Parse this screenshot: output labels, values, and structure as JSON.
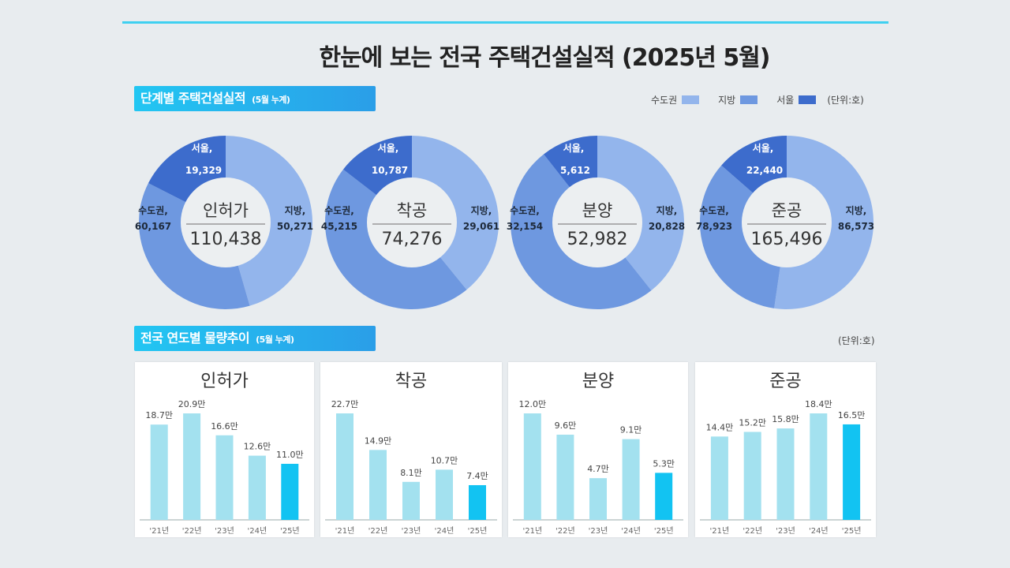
{
  "title": "한눈에 보는 전국 주택건설실적  (2025년 5월)",
  "section1": {
    "label": "단계별 주택건설실적",
    "sub": "(5월 누계)"
  },
  "section2": {
    "label": "전국 연도별 물량추이",
    "sub": "(5월 누계)"
  },
  "legend": {
    "items": [
      {
        "label": "수도권",
        "color": "#93b5ec"
      },
      {
        "label": "지방",
        "color": "#6e98e0"
      },
      {
        "label": "서울",
        "color": "#3d6ccc"
      }
    ],
    "unit": "(단위:호)"
  },
  "unit2": "(단위:호)",
  "chart_data": [
    {
      "type": "pie",
      "name": "인허가",
      "total": 110438,
      "total_label": "110,438",
      "slices": [
        {
          "label": "지방,",
          "value": 50271,
          "value_label": "50,271"
        },
        {
          "label": "수도권,",
          "value": 60167,
          "value_label": "60,167"
        },
        {
          "label": "서울,",
          "value": 19329,
          "value_label": "19,329"
        }
      ]
    },
    {
      "type": "pie",
      "name": "착공",
      "total": 74276,
      "total_label": "74,276",
      "slices": [
        {
          "label": "지방,",
          "value": 29061,
          "value_label": "29,061"
        },
        {
          "label": "수도권,",
          "value": 45215,
          "value_label": "45,215"
        },
        {
          "label": "서울,",
          "value": 10787,
          "value_label": "10,787"
        }
      ]
    },
    {
      "type": "pie",
      "name": "분양",
      "total": 52982,
      "total_label": "52,982",
      "slices": [
        {
          "label": "지방,",
          "value": 20828,
          "value_label": "20,828"
        },
        {
          "label": "수도권,",
          "value": 32154,
          "value_label": "32,154"
        },
        {
          "label": "서울,",
          "value": 5612,
          "value_label": "5,612"
        }
      ]
    },
    {
      "type": "pie",
      "name": "준공",
      "total": 165496,
      "total_label": "165,496",
      "slices": [
        {
          "label": "지방,",
          "value": 86573,
          "value_label": "86,573"
        },
        {
          "label": "수도권,",
          "value": 78923,
          "value_label": "78,923"
        },
        {
          "label": "서울,",
          "value": 22440,
          "value_label": "22,440"
        }
      ]
    },
    {
      "type": "bar",
      "title": "인허가",
      "categories": [
        "'21년",
        "'22년",
        "'23년",
        "'24년",
        "'25년"
      ],
      "values": [
        18.7,
        20.9,
        16.6,
        12.6,
        11.0
      ],
      "value_labels": [
        "18.7만",
        "20.9만",
        "16.6만",
        "12.6만",
        "11.0만"
      ]
    },
    {
      "type": "bar",
      "title": "착공",
      "categories": [
        "'21년",
        "'22년",
        "'23년",
        "'24년",
        "'25년"
      ],
      "values": [
        22.7,
        14.9,
        8.1,
        10.7,
        7.4
      ],
      "value_labels": [
        "22.7만",
        "14.9만",
        "8.1만",
        "10.7만",
        "7.4만"
      ]
    },
    {
      "type": "bar",
      "title": "분양",
      "categories": [
        "'21년",
        "'22년",
        "'23년",
        "'24년",
        "'25년"
      ],
      "values": [
        12.0,
        9.6,
        4.7,
        9.1,
        5.3
      ],
      "value_labels": [
        "12.0만",
        "9.6만",
        "4.7만",
        "9.1만",
        "5.3만"
      ]
    },
    {
      "type": "bar",
      "title": "준공",
      "categories": [
        "'21년",
        "'22년",
        "'23년",
        "'24년",
        "'25년"
      ],
      "values": [
        14.4,
        15.2,
        15.8,
        18.4,
        16.5
      ],
      "value_labels": [
        "14.4만",
        "15.2만",
        "15.8만",
        "18.4만",
        "16.5만"
      ]
    }
  ],
  "colors": {
    "bar_past": "#a3e1ef",
    "bar_current": "#12c3f2",
    "accent": "#22c6f2"
  }
}
